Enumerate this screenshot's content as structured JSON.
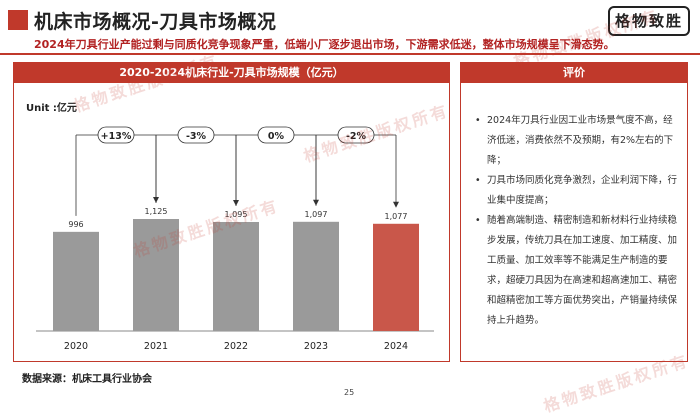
{
  "header": {
    "title": "机床市场概况-刀具市场概况",
    "subtitle": "2024年刀具行业产能过剩与同质化竞争现象严重，低端小厂逐步退出市场，下游需求低迷，整体市场规模呈下滑态势。",
    "logo_text": "格物致胜",
    "watermark_text": "格物致胜版权所有"
  },
  "colors": {
    "accent": "#c0392b",
    "bar_gray": "#9a9a9a",
    "bar_highlight": "#c9574a"
  },
  "left_panel": {
    "heading": "2020-2024机床行业-刀具市场规模（亿元）",
    "unit": "Unit :亿元"
  },
  "right_panel": {
    "heading": "评价",
    "items": [
      "2024年刀具行业因工业市场景气度不高，经济低迷，消费依然不及预期，有2%左右的下降；",
      "刀具市场同质化竞争激烈，企业利润下降，行业集中度提高；",
      "随着高端制造、精密制造和新材料行业持续稳步发展，传统刀具在加工速度、加工精度、加工质量、加工效率等不能满足生产制造的要求，超硬刀具因为在高速和超高速加工、精密和超精密加工等方面优势突出，产销量持续保持上升趋势。"
    ]
  },
  "footer": {
    "source": "数据来源：机床工具行业协会",
    "page": "25"
  },
  "chart_data": {
    "type": "bar",
    "categories": [
      "2020",
      "2021",
      "2022",
      "2023",
      "2024"
    ],
    "values": [
      996,
      1125,
      1095,
      1097,
      1077
    ],
    "value_labels": [
      "996",
      "1,125",
      "1,095",
      "1,097",
      "1,077"
    ],
    "growth_labels": [
      "+13%",
      "-3%",
      "0%",
      "-2%"
    ],
    "highlight_index": 4,
    "title": "2020-2024机床行业-刀具市场规模（亿元）",
    "ylabel": "",
    "xlabel": "",
    "grid": false
  }
}
